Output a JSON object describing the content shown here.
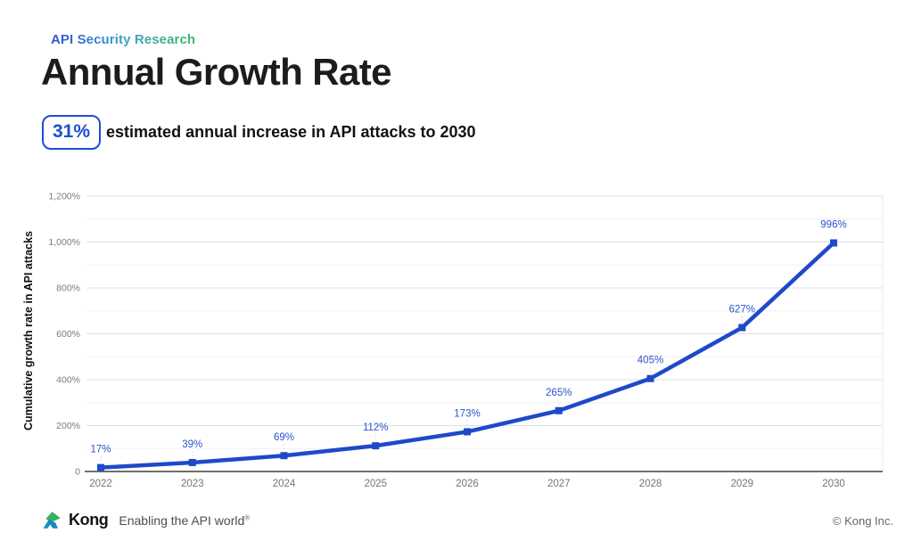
{
  "header": {
    "eyebrow": "API Security Research",
    "title": "Annual Growth Rate",
    "badge": "31%",
    "subtitle": "estimated annual increase in API attacks to 2030"
  },
  "chart_data": {
    "type": "line",
    "categories": [
      "2022",
      "2023",
      "2024",
      "2025",
      "2026",
      "2027",
      "2028",
      "2029",
      "2030"
    ],
    "values": [
      17,
      39,
      69,
      112,
      173,
      265,
      405,
      627,
      996
    ],
    "point_labels": [
      "17%",
      "39%",
      "69%",
      "112%",
      "173%",
      "265%",
      "405%",
      "627%",
      "996%"
    ],
    "title": "",
    "xlabel": "",
    "ylabel": "Cumulative growth rate in API attacks",
    "ylim": [
      0,
      1200
    ],
    "ytick_interval_major": 200,
    "ytick_interval_minor": 100,
    "ytick_labels": [
      "0",
      "200%",
      "400%",
      "600%",
      "800%",
      "1,000%",
      "1,200%"
    ],
    "grid": true,
    "legend": "none",
    "line_color": "#1e49c8",
    "point_label_color": "#2b55cb"
  },
  "footer": {
    "brand": "Kong",
    "tagline": "Enabling the API world",
    "tagline_mark": "®",
    "copyright": "© Kong Inc."
  },
  "colors": {
    "accent_blue": "#1d4ed2",
    "title_black": "#1c1c1c",
    "eyebrow_gradient": [
      "#2a54d0",
      "#3fa3c8",
      "#3ab763"
    ],
    "gridline_major": "#d9e0e8",
    "gridline_minor": "#edf1f5",
    "axis_baseline": "#6f6f6f",
    "axis_text": "#7b7b7b",
    "logo_green": "#35b25e",
    "logo_blue": "#1f6fd0",
    "logo_teal": "#16a3b0"
  }
}
